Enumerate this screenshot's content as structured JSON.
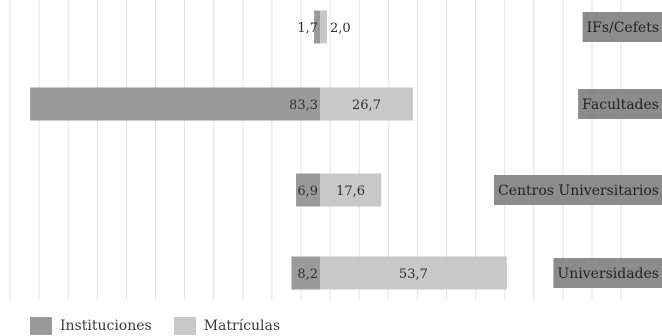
{
  "chart_data": {
    "type": "bar",
    "orientation": "horizontal-diverging",
    "categories": [
      "IFs/Cefets",
      "Facultades",
      "Centros Universitarios",
      "Universidades"
    ],
    "series": [
      {
        "name": "Instituciones",
        "values": [
          1.7,
          83.3,
          6.9,
          8.2
        ],
        "color": "#9a9a9a"
      },
      {
        "name": "Matrículas",
        "values": [
          2.0,
          26.7,
          17.6,
          53.7
        ],
        "color": "#c8c8c8"
      }
    ],
    "data_labels": {
      "Instituciones": [
        "1,7",
        "83,3",
        "6,9",
        "8,2"
      ],
      "Matrículas": [
        "2,0",
        "26,7",
        "17,6",
        "53,7"
      ]
    },
    "category_label_color": "#8c8c8c",
    "grid": "vertical",
    "legend_position": "bottom-left"
  }
}
